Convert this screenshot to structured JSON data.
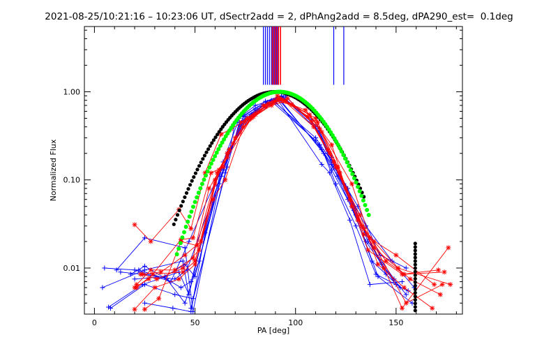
{
  "chart_data": {
    "type": "line",
    "title": "2021-08-25/10:21:16 – 10:23:06 UT, dSectr2add = 2, dPhAng2add = 8.5deg, dPA290_est=  0.1deg",
    "xlabel": "PA [deg]",
    "ylabel": "Normalized Flux",
    "xlim": [
      -5,
      183
    ],
    "ylim": [
      0.003,
      5.5
    ],
    "yscale": "log",
    "grid": false,
    "x_ticks": [
      0,
      50,
      100,
      150
    ],
    "y_ticks": [
      {
        "value": 0.01,
        "label": "0.01"
      },
      {
        "value": 0.1,
        "label": "0.10"
      },
      {
        "value": 1.0,
        "label": "1.00"
      }
    ],
    "colors": {
      "blue": "#0000ff",
      "red": "#ff0000",
      "black": "#000000",
      "green": "#00ff00"
    },
    "vertical_markers": {
      "blue": [
        84,
        85,
        86,
        87,
        88,
        89,
        90,
        91,
        119,
        124
      ],
      "red": [
        88.5,
        89.5,
        90.5,
        91.5,
        92.5
      ],
      "y_bottom": 1.2
    },
    "series": [
      {
        "color": "blue",
        "marker": "+",
        "x": [
          4,
          25,
          44,
          48,
          65,
          70,
          74,
          80,
          91,
          113,
          121,
          135,
          148,
          159
        ],
        "y": [
          0.006,
          0.0095,
          0.012,
          0.0035,
          0.12,
          0.45,
          0.55,
          0.7,
          0.85,
          0.22,
          0.11,
          0.03,
          0.012,
          0.006
        ]
      },
      {
        "color": "blue",
        "marker": "+",
        "x": [
          5,
          20,
          38,
          47,
          62,
          72,
          80,
          89,
          112,
          118,
          130,
          143,
          155
        ],
        "y": [
          0.01,
          0.0095,
          0.007,
          0.02,
          0.12,
          0.5,
          0.65,
          0.8,
          0.25,
          0.13,
          0.04,
          0.011,
          0.005
        ]
      },
      {
        "color": "blue",
        "marker": "+",
        "x": [
          8,
          25,
          40,
          49,
          66,
          72,
          81,
          90,
          110,
          119,
          129,
          141,
          158
        ],
        "y": [
          0.0035,
          0.0065,
          0.005,
          0.0045,
          0.14,
          0.45,
          0.6,
          0.75,
          0.3,
          0.15,
          0.045,
          0.008,
          0.004
        ]
      },
      {
        "color": "blue",
        "marker": "+",
        "x": [
          7,
          24,
          42,
          47,
          60,
          75,
          84,
          91,
          113,
          117,
          127,
          137,
          153
        ],
        "y": [
          0.0036,
          0.0065,
          0.009,
          0.005,
          0.09,
          0.48,
          0.72,
          0.82,
          0.15,
          0.12,
          0.035,
          0.0065,
          0.007
        ]
      },
      {
        "color": "blue",
        "marker": "+",
        "x": [
          11,
          25,
          45,
          49,
          63,
          74,
          85,
          93,
          112,
          118,
          126,
          135,
          150
        ],
        "y": [
          0.0095,
          0.022,
          0.017,
          0.0032,
          0.11,
          0.52,
          0.78,
          0.9,
          0.35,
          0.15,
          0.06,
          0.02,
          0.0065
        ]
      },
      {
        "color": "blue",
        "marker": "+",
        "x": [
          20,
          35,
          45,
          50,
          62,
          72,
          80,
          88,
          110,
          121,
          131,
          142,
          155
        ],
        "y": [
          0.0075,
          0.008,
          0.011,
          0.008,
          0.09,
          0.42,
          0.62,
          0.78,
          0.28,
          0.12,
          0.05,
          0.014,
          0.01
        ]
      },
      {
        "color": "blue",
        "marker": "+",
        "x": [
          13,
          24,
          40,
          46,
          64,
          75,
          86,
          93,
          111,
          116,
          124,
          133,
          145
        ],
        "y": [
          0.009,
          0.0085,
          0.0075,
          0.0095,
          0.13,
          0.52,
          0.75,
          0.88,
          0.4,
          0.22,
          0.09,
          0.03,
          0.0085
        ]
      },
      {
        "color": "blue",
        "marker": "+",
        "x": [
          18,
          25,
          43,
          48,
          61,
          73,
          82,
          92,
          114,
          120,
          130,
          140,
          156
        ],
        "y": [
          0.0085,
          0.0105,
          0.006,
          0.007,
          0.085,
          0.43,
          0.62,
          0.83,
          0.2,
          0.09,
          0.03,
          0.0085,
          0.0055
        ]
      },
      {
        "color": "blue",
        "marker": "+",
        "x": [
          25,
          39,
          48,
          55,
          67,
          78,
          88,
          95,
          110,
          118,
          128,
          138,
          152
        ],
        "y": [
          0.004,
          0.0035,
          0.0032,
          0.025,
          0.22,
          0.55,
          0.8,
          0.9,
          0.4,
          0.18,
          0.05,
          0.012,
          0.006
        ]
      },
      {
        "color": "blue",
        "marker": "+",
        "x": [
          22,
          36,
          45,
          52,
          64,
          76,
          86,
          94,
          108,
          116,
          126,
          136,
          149
        ],
        "y": [
          0.0095,
          0.0075,
          0.004,
          0.012,
          0.16,
          0.5,
          0.76,
          0.86,
          0.48,
          0.2,
          0.08,
          0.02,
          0.0075
        ]
      },
      {
        "color": "red",
        "marker": "*",
        "x": [
          20,
          28,
          42,
          48,
          55,
          63,
          68,
          80,
          91,
          107,
          118,
          128,
          139,
          157,
          172
        ],
        "y": [
          0.031,
          0.02,
          0.046,
          0.028,
          0.12,
          0.33,
          0.38,
          0.55,
          0.9,
          0.55,
          0.25,
          0.05,
          0.017,
          0.0075,
          0.005
        ]
      },
      {
        "color": "red",
        "marker": "*",
        "x": [
          20,
          27,
          43,
          49,
          58,
          64,
          73,
          84,
          92,
          110,
          121,
          133,
          145,
          154,
          174
        ],
        "y": [
          0.006,
          0.0075,
          0.021,
          0.022,
          0.12,
          0.14,
          0.45,
          0.7,
          0.85,
          0.5,
          0.14,
          0.03,
          0.012,
          0.0085,
          0.009
        ]
      },
      {
        "color": "red",
        "marker": "*",
        "x": [
          21,
          29,
          44,
          50,
          60,
          66,
          75,
          86,
          93,
          111,
          122,
          134,
          144,
          153,
          176
        ],
        "y": [
          0.006,
          0.0085,
          0.009,
          0.012,
          0.09,
          0.2,
          0.46,
          0.72,
          0.82,
          0.45,
          0.12,
          0.028,
          0.01,
          0.0035,
          0.017
        ]
      },
      {
        "color": "red",
        "marker": "*",
        "x": [
          20,
          30,
          42,
          50,
          59,
          65,
          74,
          85,
          91,
          105,
          113,
          128,
          137,
          155,
          173
        ],
        "y": [
          0.0034,
          0.006,
          0.0075,
          0.011,
          0.06,
          0.1,
          0.4,
          0.68,
          0.83,
          0.62,
          0.35,
          0.09,
          0.022,
          0.004,
          0.0065
        ]
      },
      {
        "color": "red",
        "marker": "*",
        "x": [
          24,
          31,
          44,
          52,
          61,
          69,
          76,
          87,
          94,
          109,
          119,
          131,
          139,
          151,
          177
        ],
        "y": [
          0.0085,
          0.0075,
          0.01,
          0.016,
          0.12,
          0.26,
          0.5,
          0.74,
          0.8,
          0.4,
          0.16,
          0.035,
          0.02,
          0.01,
          0.0065
        ]
      },
      {
        "color": "red",
        "marker": "*",
        "x": [
          25,
          32,
          43,
          51,
          60,
          67,
          77,
          88,
          95,
          106,
          116,
          127,
          136,
          153,
          171
        ],
        "y": [
          0.0034,
          0.0045,
          0.02,
          0.018,
          0.1,
          0.22,
          0.48,
          0.7,
          0.78,
          0.52,
          0.22,
          0.06,
          0.016,
          0.0085,
          0.0095
        ]
      },
      {
        "color": "red",
        "marker": "*",
        "x": [
          21,
          28,
          40,
          49,
          57,
          66,
          78,
          89,
          96,
          108,
          117,
          125,
          134,
          150,
          169
        ],
        "y": [
          0.0065,
          0.0095,
          0.0095,
          0.013,
          0.08,
          0.18,
          0.5,
          0.75,
          0.84,
          0.46,
          0.2,
          0.08,
          0.024,
          0.014,
          0.0065
        ]
      },
      {
        "color": "red",
        "marker": "*",
        "x": [
          23,
          33,
          45,
          53,
          62,
          70,
          79,
          90,
          98,
          112,
          120,
          132,
          141,
          154,
          168
        ],
        "y": [
          0.0085,
          0.009,
          0.014,
          0.02,
          0.13,
          0.3,
          0.52,
          0.78,
          0.72,
          0.38,
          0.14,
          0.04,
          0.011,
          0.006,
          0.0035
        ]
      }
    ],
    "model_black": {
      "color": "black",
      "description": "dotted model curve",
      "center": 89.5,
      "sigma": 19.0,
      "xmin": 39.5,
      "xmax": 134,
      "extra_column": {
        "x": 159.5,
        "y_from": 0.0033,
        "y_to": 0.02
      }
    },
    "model_green": {
      "color": "green",
      "description": "dotted model curve",
      "center": 92,
      "sigma": 17.5,
      "xmin": 41,
      "xmax": 137
    }
  }
}
